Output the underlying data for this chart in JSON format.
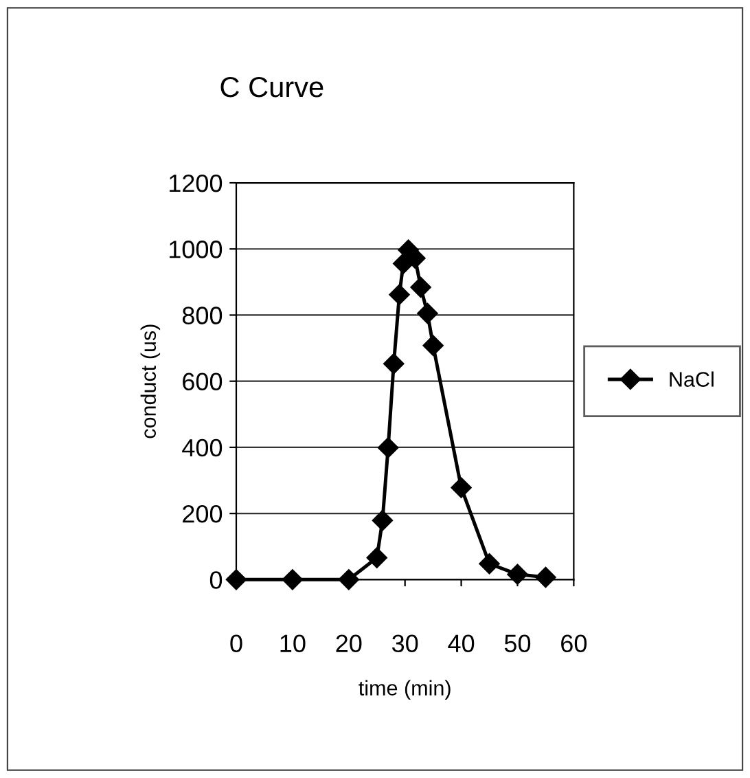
{
  "chart_data": {
    "type": "line",
    "title": "C Curve",
    "xlabel": "time (min)",
    "ylabel": "conduct (us)",
    "x": [
      0,
      10,
      20,
      25,
      26,
      27,
      28,
      29,
      29.7,
      30.6,
      31.8,
      32.8,
      34,
      35,
      40,
      45,
      50,
      55
    ],
    "series": [
      {
        "name": "NaCl",
        "color": "#000000",
        "values": [
          0,
          0,
          0,
          66,
          179,
          399,
          653,
          862,
          956,
          997,
          972,
          884,
          805,
          708,
          278,
          48,
          16,
          7
        ]
      }
    ],
    "xlim": [
      0,
      60
    ],
    "xticks": [
      0,
      10,
      20,
      30,
      40,
      50,
      60
    ],
    "ylim": [
      0,
      1200
    ],
    "yticks": [
      0,
      200,
      400,
      600,
      800,
      1000,
      1200
    ],
    "grid": "y",
    "legend": "right",
    "marker": "diamond",
    "line_style": "solid"
  }
}
